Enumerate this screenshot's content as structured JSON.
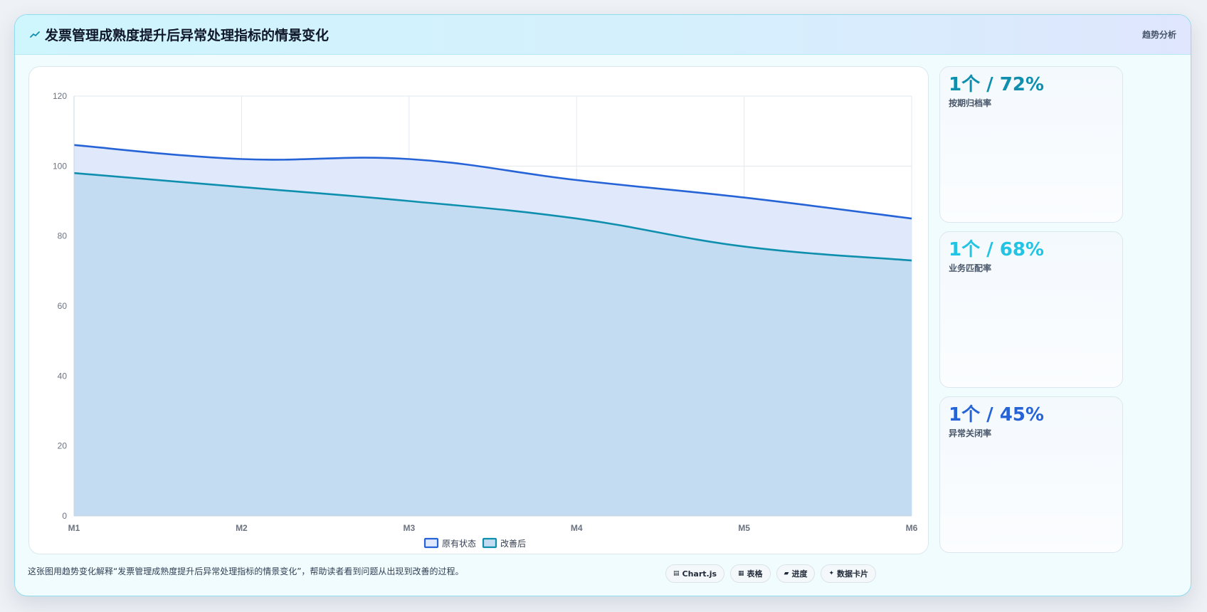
{
  "header": {
    "icon": "trend-icon",
    "title": "发票管理成熟度提升后异常处理指标的情景变化",
    "badge": "趋势分析"
  },
  "chart_data": {
    "type": "area",
    "categories": [
      "M1",
      "M2",
      "M3",
      "M4",
      "M5",
      "M6"
    ],
    "series": [
      {
        "name": "原有状态",
        "values": [
          106,
          102,
          102,
          96,
          91,
          85
        ],
        "color": "#2563d6",
        "fill": "#dfe9fb"
      },
      {
        "name": "改善后",
        "values": [
          98,
          94,
          90,
          85,
          77,
          73
        ],
        "color": "#0e8fae",
        "fill": "#c4dcf1"
      }
    ],
    "ylim": [
      0,
      120
    ],
    "yticks": [
      0,
      20,
      40,
      60,
      80,
      100,
      120
    ],
    "grid": true,
    "legend_position": "bottom"
  },
  "stats": [
    {
      "value": "1个 / 72%",
      "label": "按期归档率",
      "color": "#0e8fae"
    },
    {
      "value": "1个 / 68%",
      "label": "业务匹配率",
      "color": "#22c3e3"
    },
    {
      "value": "1个 / 45%",
      "label": "异常关闭率",
      "color": "#2563d6"
    }
  ],
  "footer": {
    "description": "这张图用趋势变化解释“发票管理成熟度提升后异常处理指标的情景变化”，帮助读者看到问题从出现到改善的过程。",
    "tags": [
      {
        "icon": "chart-icon",
        "glyph": "▤",
        "label": "Chart.js"
      },
      {
        "icon": "table-icon",
        "glyph": "▦",
        "label": "表格"
      },
      {
        "icon": "progress-icon",
        "glyph": "▰",
        "label": "进度"
      },
      {
        "icon": "sparkle-icon",
        "glyph": "✦",
        "label": "数据卡片"
      }
    ]
  }
}
